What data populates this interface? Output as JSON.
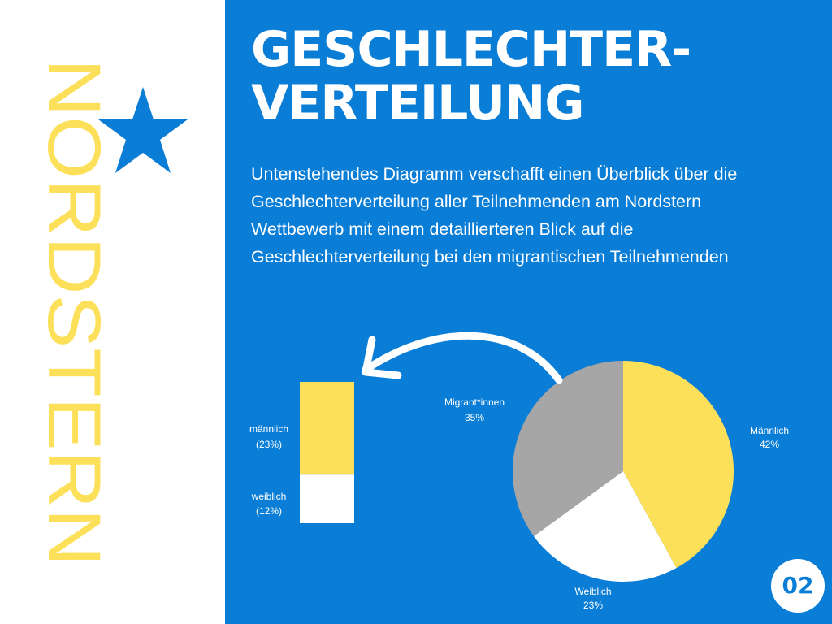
{
  "brand": {
    "name": "NORDSTERN",
    "color": "#fde05a"
  },
  "star_color": "#0a7dd6",
  "title": {
    "line1": "GESCHLECHTER-",
    "line2": "VERTEILUNG"
  },
  "intro": "Untenstehendes Diagramm verschafft einen Überblick über die Geschlechterverteilung aller Teilnehmenden am Nordstern Wettbewerb mit einem detaillierteren Blick auf die Geschlechterverteilung bei den migrantischen Teilnehmenden",
  "page_number": "02",
  "colors": {
    "background": "#0a7dd6",
    "yellow": "#fde05a",
    "white": "#ffffff",
    "gray": "#a6a6a6"
  },
  "chart_data": {
    "type": "pie",
    "slices": [
      {
        "name": "Männlich",
        "value": 42,
        "label": "42%",
        "color": "#fde05a"
      },
      {
        "name": "Weiblich",
        "value": 23,
        "label": "23%",
        "color": "#ffffff"
      },
      {
        "name": "Migrant*innen",
        "value": 35,
        "label": "35%",
        "color": "#a6a6a6"
      }
    ],
    "breakdown": {
      "type": "bar",
      "of": "Migrant*innen",
      "segments": [
        {
          "name": "männlich",
          "value": 23,
          "label": "(23%)",
          "color": "#fde05a"
        },
        {
          "name": "weiblich",
          "value": 12,
          "label": "(12%)",
          "color": "#ffffff"
        }
      ]
    }
  }
}
